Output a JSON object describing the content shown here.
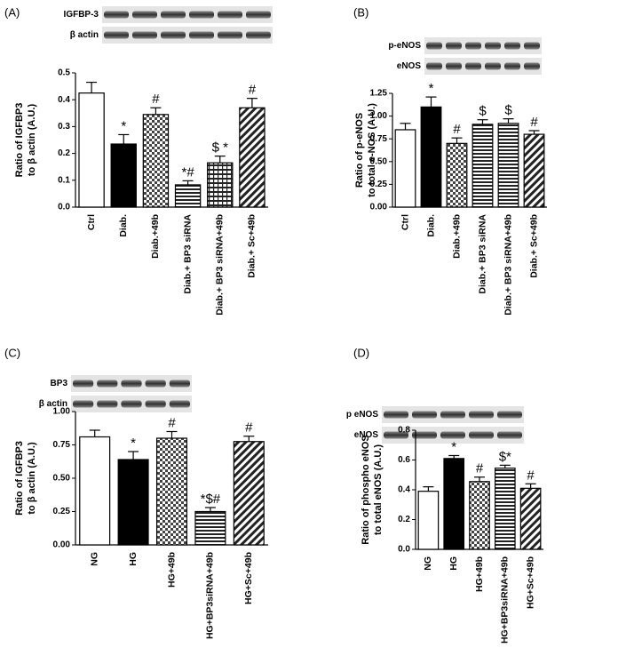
{
  "chart_data": [
    {
      "type": "bar",
      "panel": "(A)",
      "blot_labels": [
        "IGFBP-3",
        "β actin"
      ],
      "ylabel": [
        "Ratio of IGFBP3",
        "to β actin (A.U.)"
      ],
      "categories": [
        "Ctrl",
        "Diab.",
        "Diab.+49b",
        "Diab.+ BP3 siRNA",
        "Diab.+ BP3 siRNA+49b",
        "Diab.+ Sc+49b"
      ],
      "values": [
        0.425,
        0.235,
        0.345,
        0.083,
        0.165,
        0.37
      ],
      "errors": [
        0.04,
        0.035,
        0.025,
        0.015,
        0.025,
        0.035
      ],
      "annotations": [
        null,
        "*",
        "#",
        "*#",
        "$ *",
        "#"
      ],
      "patterns": [
        "white",
        "black",
        "checker",
        "hlines",
        "grid",
        "hatch"
      ],
      "ylim": [
        0,
        0.5
      ],
      "yticks": [
        {
          "value": 0,
          "label": "0.0"
        },
        0.1,
        0.2,
        0.3,
        0.4,
        0.5
      ]
    },
    {
      "type": "bar",
      "panel": "(B)",
      "blot_labels": [
        "p-eNOS",
        "eNOS"
      ],
      "ylabel": [
        "Ratio of p-eNOS",
        "to total e-NOS (A.U.)"
      ],
      "categories": [
        "Ctrl",
        "Diab.",
        "Diab.+49b",
        "Diab.+ BP3 siRNA",
        "Diab.+ BP3 siRNA+49b",
        "Diab.+ Sc+49b"
      ],
      "values": [
        0.85,
        1.1,
        0.7,
        0.91,
        0.92,
        0.8
      ],
      "errors": [
        0.07,
        0.11,
        0.06,
        0.05,
        0.05,
        0.04
      ],
      "annotations": [
        null,
        "*",
        "#",
        "$",
        "$",
        "#"
      ],
      "patterns": [
        "white",
        "black",
        "checker",
        "hlines",
        "hlines",
        "hatch"
      ],
      "ylim": [
        0,
        1.25
      ],
      "yticks": [
        {
          "value": 0,
          "label": "0.00"
        },
        0.25,
        {
          "value": 0.5,
          "label": "0.50"
        },
        0.75,
        {
          "value": 1,
          "label": "1.00"
        },
        1.25
      ]
    },
    {
      "type": "bar",
      "panel": "(C)",
      "blot_labels": [
        "BP3",
        "β actin"
      ],
      "ylabel": [
        "Ratio of IGFBP3",
        "to β actin (A.U.)"
      ],
      "categories": [
        "NG",
        "HG",
        "HG+49b",
        "HG+BP3siRNA+49b",
        "HG+Sc+49b"
      ],
      "values": [
        0.81,
        0.64,
        0.8,
        0.25,
        0.775
      ],
      "errors": [
        0.05,
        0.06,
        0.05,
        0.03,
        0.04
      ],
      "annotations": [
        null,
        "*",
        "#",
        "*$#",
        "#"
      ],
      "patterns": [
        "white",
        "black",
        "checker",
        "hlines",
        "hatch"
      ],
      "ylim": [
        0,
        1
      ],
      "yticks": [
        {
          "value": 0,
          "label": "0.00"
        },
        0.25,
        {
          "value": 0.5,
          "label": "0.50"
        },
        0.75,
        {
          "value": 1,
          "label": "1.00"
        }
      ]
    },
    {
      "type": "bar",
      "panel": "(D)",
      "blot_labels": [
        "p eNOS",
        "eNOS"
      ],
      "ylabel": [
        "Ratio of phospho eNOS",
        "to total eNOS (A.U.)"
      ],
      "categories": [
        "NG",
        "HG",
        "HG+49b",
        "HG+BP3siRNA+49b",
        "HG+Sc+49b"
      ],
      "values": [
        0.39,
        0.61,
        0.455,
        0.545,
        0.41
      ],
      "errors": [
        0.03,
        0.02,
        0.03,
        0.02,
        0.03
      ],
      "annotations": [
        null,
        "*",
        "#",
        "$*",
        "#"
      ],
      "patterns": [
        "white",
        "black",
        "checker",
        "hlines",
        "hatch"
      ],
      "ylim": [
        0,
        0.8
      ],
      "yticks": [
        {
          "value": 0,
          "label": "0.0"
        },
        0.2,
        0.4,
        0.6,
        0.8
      ]
    }
  ]
}
